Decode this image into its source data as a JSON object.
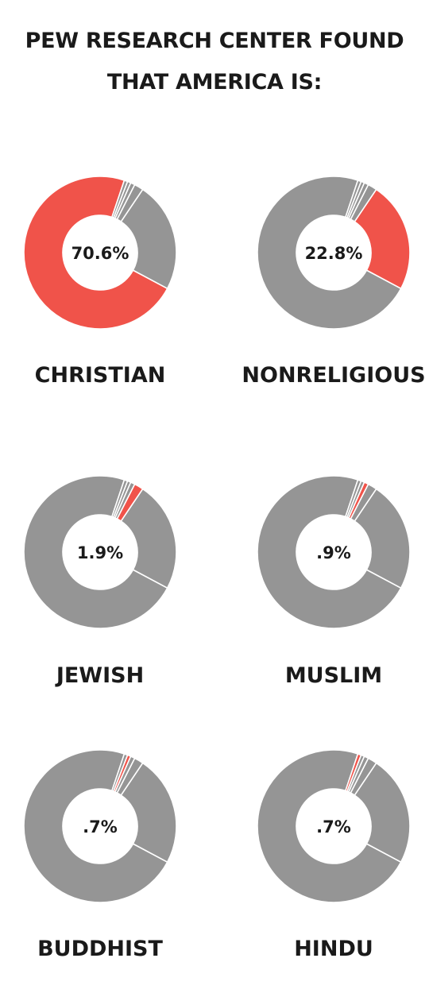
{
  "title": {
    "line1": "PEW RESEARCH CENTER FOUND",
    "line2": "THAT AMERICA IS:"
  },
  "colors": {
    "highlight": "#f0534a",
    "other": "#959595",
    "separator": "#ffffff"
  },
  "chart_data": [
    {
      "type": "pie",
      "highlight_index": 0,
      "center_label": "70.6%",
      "category_label": "CHRISTIAN",
      "slices": [
        {
          "label": "CHRISTIAN",
          "value": 70.6
        },
        {
          "label": "NONRELIGIOUS",
          "value": 22.8
        },
        {
          "label": "JEWISH",
          "value": 1.9
        },
        {
          "label": "MUSLIM",
          "value": 0.9
        },
        {
          "label": "BUDDHIST",
          "value": 0.7
        },
        {
          "label": "HINDU",
          "value": 0.7
        }
      ]
    },
    {
      "type": "pie",
      "highlight_index": 1,
      "center_label": "22.8%",
      "category_label": "NONRELIGIOUS",
      "slices": [
        {
          "label": "CHRISTIAN",
          "value": 70.6
        },
        {
          "label": "NONRELIGIOUS",
          "value": 22.8
        },
        {
          "label": "JEWISH",
          "value": 1.9
        },
        {
          "label": "MUSLIM",
          "value": 0.9
        },
        {
          "label": "BUDDHIST",
          "value": 0.7
        },
        {
          "label": "HINDU",
          "value": 0.7
        }
      ]
    },
    {
      "type": "pie",
      "highlight_index": 2,
      "center_label": "1.9%",
      "category_label": "JEWISH",
      "slices": [
        {
          "label": "CHRISTIAN",
          "value": 70.6
        },
        {
          "label": "NONRELIGIOUS",
          "value": 22.8
        },
        {
          "label": "JEWISH",
          "value": 1.9
        },
        {
          "label": "MUSLIM",
          "value": 0.9
        },
        {
          "label": "BUDDHIST",
          "value": 0.7
        },
        {
          "label": "HINDU",
          "value": 0.7
        }
      ]
    },
    {
      "type": "pie",
      "highlight_index": 3,
      "center_label": ".9%",
      "category_label": "MUSLIM",
      "slices": [
        {
          "label": "CHRISTIAN",
          "value": 70.6
        },
        {
          "label": "NONRELIGIOUS",
          "value": 22.8
        },
        {
          "label": "JEWISH",
          "value": 1.9
        },
        {
          "label": "MUSLIM",
          "value": 0.9
        },
        {
          "label": "BUDDHIST",
          "value": 0.7
        },
        {
          "label": "HINDU",
          "value": 0.7
        }
      ]
    },
    {
      "type": "pie",
      "highlight_index": 4,
      "center_label": ".7%",
      "category_label": "BUDDHIST",
      "slices": [
        {
          "label": "CHRISTIAN",
          "value": 70.6
        },
        {
          "label": "NONRELIGIOUS",
          "value": 22.8
        },
        {
          "label": "JEWISH",
          "value": 1.9
        },
        {
          "label": "MUSLIM",
          "value": 0.9
        },
        {
          "label": "BUDDHIST",
          "value": 0.7
        },
        {
          "label": "HINDU",
          "value": 0.7
        }
      ]
    },
    {
      "type": "pie",
      "highlight_index": 5,
      "center_label": ".7%",
      "category_label": "HINDU",
      "slices": [
        {
          "label": "CHRISTIAN",
          "value": 70.6
        },
        {
          "label": "NONRELIGIOUS",
          "value": 22.8
        },
        {
          "label": "JEWISH",
          "value": 1.9
        },
        {
          "label": "MUSLIM",
          "value": 0.9
        },
        {
          "label": "BUDDHIST",
          "value": 0.7
        },
        {
          "label": "HINDU",
          "value": 0.7
        }
      ]
    }
  ]
}
